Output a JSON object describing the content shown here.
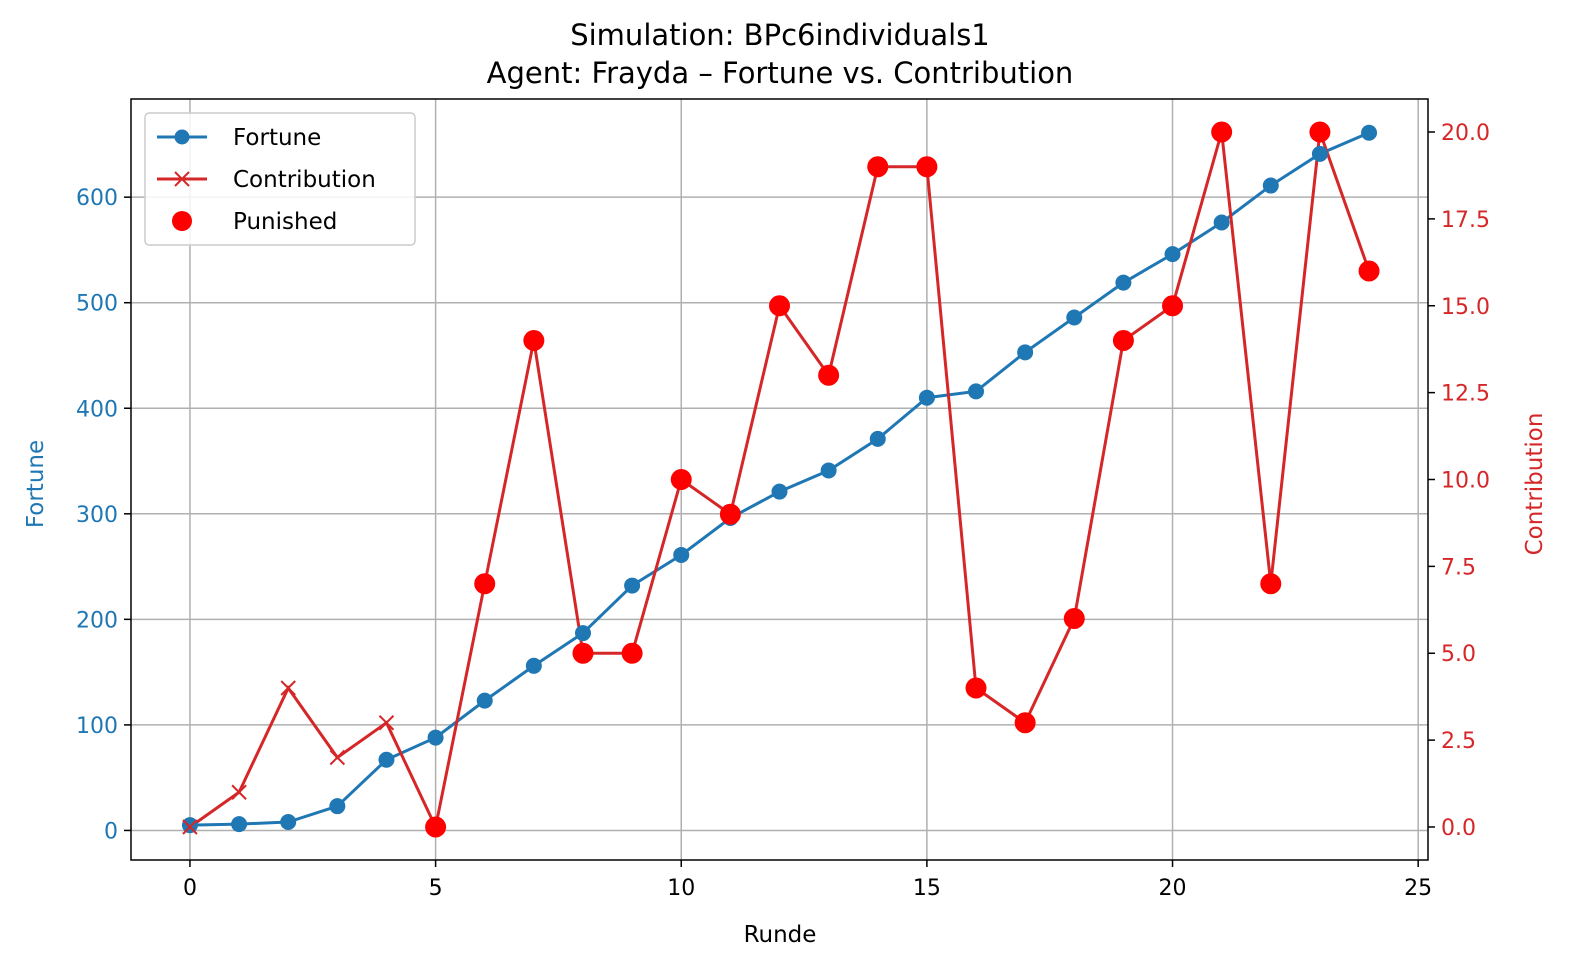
{
  "chart_data": {
    "type": "line",
    "title": "Simulation: BPc6individuals1",
    "subtitle": "Agent: Frayda – Fortune vs. Contribution",
    "xlabel": "Runde",
    "ylabel_left": "Fortune",
    "ylabel_right": "Contribution",
    "xlim": [
      -1.2,
      25.2
    ],
    "ylim_left": [
      -28,
      693
    ],
    "ylim_right": [
      -0.95,
      20.95
    ],
    "x_ticks": [
      "0",
      "5",
      "10",
      "15",
      "20",
      "25"
    ],
    "y_left_ticks": [
      "0",
      "100",
      "200",
      "300",
      "400",
      "500",
      "600"
    ],
    "y_right_ticks": [
      "0.0",
      "2.5",
      "5.0",
      "7.5",
      "10.0",
      "12.5",
      "15.0",
      "17.5",
      "20.0"
    ],
    "grid": true,
    "legend_position": "top-left",
    "x": [
      0,
      1,
      2,
      3,
      4,
      5,
      6,
      7,
      8,
      9,
      10,
      11,
      12,
      13,
      14,
      15,
      16,
      17,
      18,
      19,
      20,
      21,
      22,
      23,
      24
    ],
    "series": [
      {
        "name": "Fortune",
        "axis": "left",
        "marker": "circle",
        "color": "#1f77b4",
        "values": [
          5,
          6,
          8,
          23,
          67,
          88,
          123,
          156,
          187,
          232,
          261,
          296,
          321,
          341,
          371,
          410,
          416,
          453,
          486,
          519,
          546,
          576,
          611,
          641,
          661
        ]
      },
      {
        "name": "Contribution",
        "axis": "right",
        "marker": "x",
        "color": "#d62728",
        "values": [
          0,
          1,
          4,
          2,
          3,
          0,
          7,
          14,
          5,
          5,
          10,
          9,
          15,
          13,
          19,
          19,
          4,
          3,
          6,
          14,
          15,
          20,
          7,
          20,
          16
        ]
      },
      {
        "name": "Punished",
        "axis": "right",
        "marker": "scatter",
        "color": "#ff0000",
        "x": [
          5,
          6,
          7,
          8,
          9,
          10,
          11,
          12,
          13,
          14,
          15,
          16,
          17,
          18,
          19,
          20,
          21,
          22,
          23,
          24
        ],
        "values": [
          0,
          7,
          14,
          5,
          5,
          10,
          9,
          15,
          13,
          19,
          19,
          4,
          3,
          6,
          14,
          15,
          20,
          7,
          20,
          16
        ]
      }
    ]
  }
}
